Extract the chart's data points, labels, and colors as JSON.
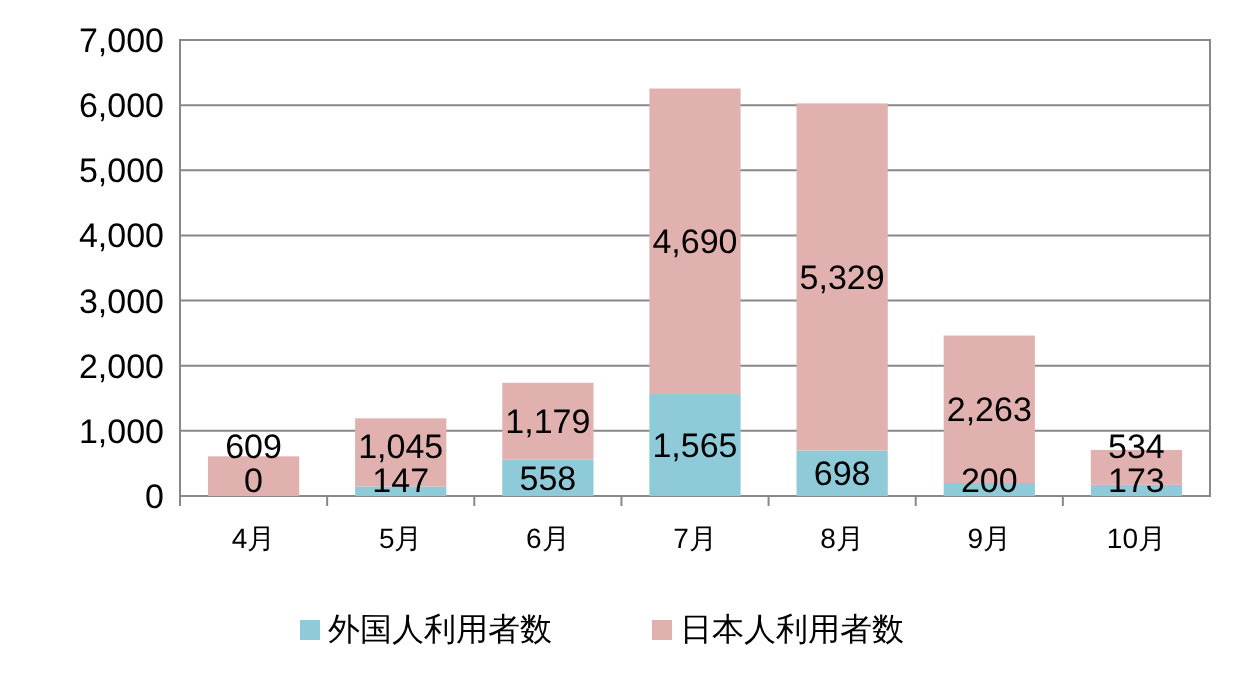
{
  "chart_data": {
    "type": "bar",
    "stacked": true,
    "categories": [
      "4月",
      "5月",
      "6月",
      "7月",
      "8月",
      "9月",
      "10月"
    ],
    "series": [
      {
        "name": "外国人利用者数",
        "color": "#8ecad8",
        "values": [
          0,
          147,
          558,
          1565,
          698,
          200,
          173
        ],
        "value_labels": [
          "0",
          "147",
          "558",
          "1,565",
          "698",
          "200",
          "173"
        ]
      },
      {
        "name": "日本人利用者数",
        "color": "#e0b1ae",
        "values": [
          609,
          1045,
          1179,
          4690,
          5329,
          2263,
          534
        ],
        "value_labels": [
          "609",
          "1,045",
          "1,179",
          "4,690",
          "5,329",
          "2,263",
          "534"
        ]
      }
    ],
    "ylim": [
      0,
      7000
    ],
    "yticks": [
      0,
      {
        "value": 1000,
        "label": "1,000"
      },
      {
        "value": 2000,
        "label": "2,000"
      },
      {
        "value": 3000,
        "label": "3,000"
      },
      {
        "value": 4000,
        "label": "4,000"
      },
      {
        "value": 5000,
        "label": "5,000"
      },
      {
        "value": 6000,
        "label": "6,000"
      },
      {
        "value": 7000,
        "label": "7,000"
      }
    ],
    "grid": "y",
    "legend": "bottom"
  }
}
